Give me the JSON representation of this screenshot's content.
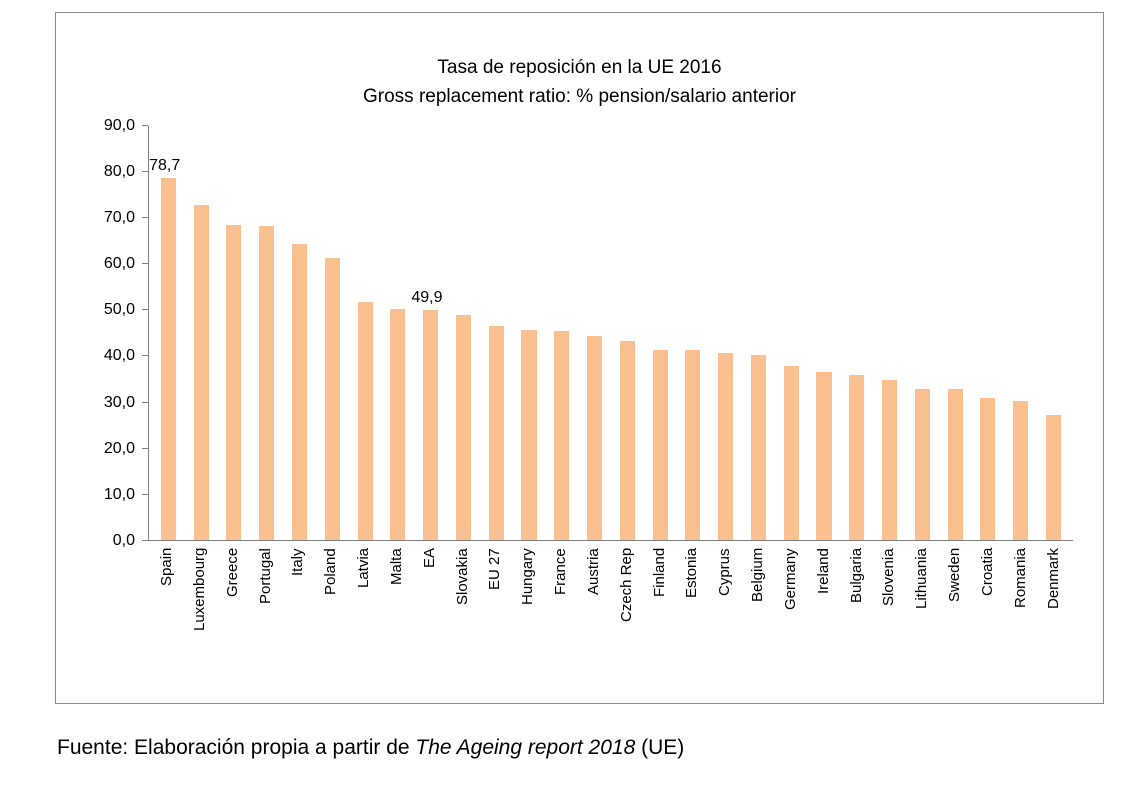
{
  "chart_data": {
    "type": "bar",
    "title_line1": "Tasa de reposición en la UE 2016",
    "title_line2": "Gross replacement ratio: % pension/salario anterior",
    "categories": [
      "Spain",
      "Luxembourg",
      "Greece",
      "Portugal",
      "Italy",
      "Poland",
      "Latvia",
      "Malta",
      "EA",
      "Slovakia",
      "EU 27",
      "Hungary",
      "France",
      "Austria",
      "Czech Rep",
      "Finland",
      "Estonia",
      "Cyprus",
      "Belgium",
      "Germany",
      "Ireland",
      "Bulgaria",
      "Slovenia",
      "Lithuania",
      "Sweden",
      "Croatia",
      "Romania",
      "Denmark"
    ],
    "values": [
      78.7,
      72.9,
      68.5,
      68.3,
      64.3,
      61.2,
      51.7,
      50.1,
      49.9,
      48.9,
      46.4,
      45.6,
      45.4,
      44.4,
      43.2,
      41.3,
      41.2,
      40.7,
      40.2,
      37.9,
      36.6,
      35.9,
      34.8,
      32.9,
      32.7,
      30.9,
      30.2,
      27.2
    ],
    "annotations": [
      {
        "index": 0,
        "label": "78,7"
      },
      {
        "index": 8,
        "label": "49,9"
      }
    ],
    "ylim": [
      0,
      90
    ],
    "ytick_step": 10,
    "ytick_labels": [
      "0,0",
      "10,0",
      "20,0",
      "30,0",
      "40,0",
      "50,0",
      "60,0",
      "70,0",
      "80,0",
      "90,0"
    ],
    "bar_color": "#FAC090",
    "axis_color": "#808080",
    "grid": "off",
    "legend": "none"
  },
  "footer": {
    "prefix": "Fuente: Elaboración propia a partir de ",
    "italic": "The Ageing report 2018",
    "suffix": " (UE)"
  }
}
